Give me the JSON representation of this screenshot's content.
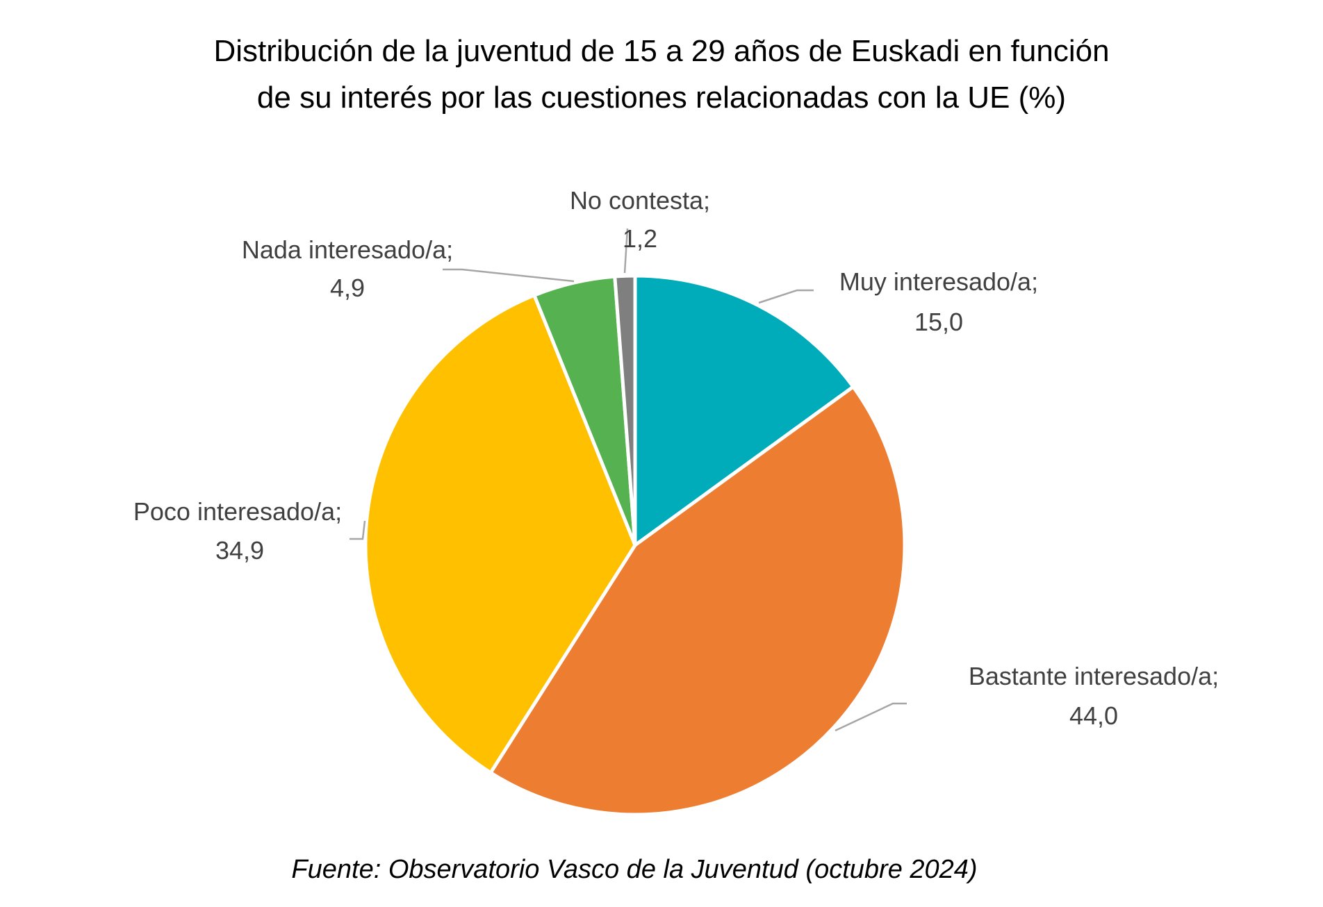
{
  "chart_data": {
    "type": "pie",
    "title": [
      "Distribución de la juventud de 15 a 29 años de Euskadi en función",
      "de su interés por las cuestiones relacionadas con la UE (%)"
    ],
    "source": "Fuente: Observatorio Vasco de la Juventud (octubre 2024)",
    "slices": [
      {
        "label": "Muy interesado/a;",
        "value": 15.0,
        "value_label": "15,0",
        "color": "#00ACBA"
      },
      {
        "label": "Bastante interesado/a;",
        "value": 44.0,
        "value_label": "44,0",
        "color": "#ED7D31"
      },
      {
        "label": "Poco interesado/a;",
        "value": 34.9,
        "value_label": "34,9",
        "color": "#FFC000"
      },
      {
        "label": "Nada interesado/a;",
        "value": 4.9,
        "value_label": "4,9",
        "color": "#56B151"
      },
      {
        "label": "No contesta;",
        "value": 1.2,
        "value_label": "1,2",
        "color": "#7F7F7F"
      }
    ],
    "start_angle": "12 o'clock, clockwise",
    "legend": "none (data labels with leader lines)"
  }
}
